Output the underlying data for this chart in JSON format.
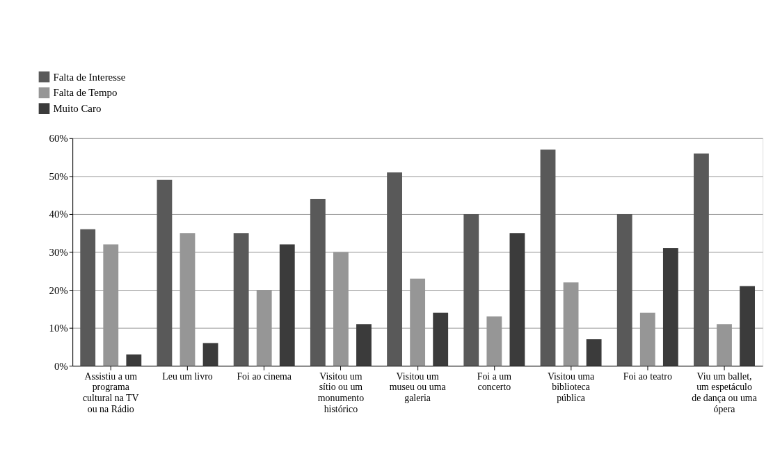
{
  "chart_data": {
    "type": "bar",
    "categories": [
      "Assistiu a um programa cultural na TV ou na Rádio",
      "Leu um livro",
      "Foi ao cinema",
      "Visitou um sítio ou um monumento histórico",
      "Visitou um museu ou uma galeria",
      "Foi a um concerto",
      "Visitou uma biblioteca pública",
      "Foi ao teatro",
      "Viu um ballet, um espetáculo de dança ou uma ópera"
    ],
    "series": [
      {
        "name": "Falta de Interesse",
        "color": "#595959",
        "values": [
          36,
          49,
          35,
          44,
          51,
          40,
          57,
          40,
          56
        ]
      },
      {
        "name": "Falta de Tempo",
        "color": "#969696",
        "values": [
          32,
          35,
          20,
          30,
          23,
          13,
          22,
          14,
          11
        ]
      },
      {
        "name": "Muito Caro",
        "color": "#3b3b3b",
        "values": [
          3,
          6,
          32,
          11,
          14,
          35,
          7,
          31,
          21
        ]
      }
    ],
    "ylim": [
      0,
      60
    ],
    "yticks": [
      {
        "value": 0,
        "label": "0%"
      },
      {
        "value": 10,
        "label": "10%"
      },
      {
        "value": 20,
        "label": "20%"
      },
      {
        "value": 30,
        "label": "30%"
      },
      {
        "value": 40,
        "label": "40%"
      },
      {
        "value": 50,
        "label": "50%"
      },
      {
        "value": 60,
        "label": "60%"
      }
    ],
    "grid": "y",
    "legend": "top left"
  }
}
